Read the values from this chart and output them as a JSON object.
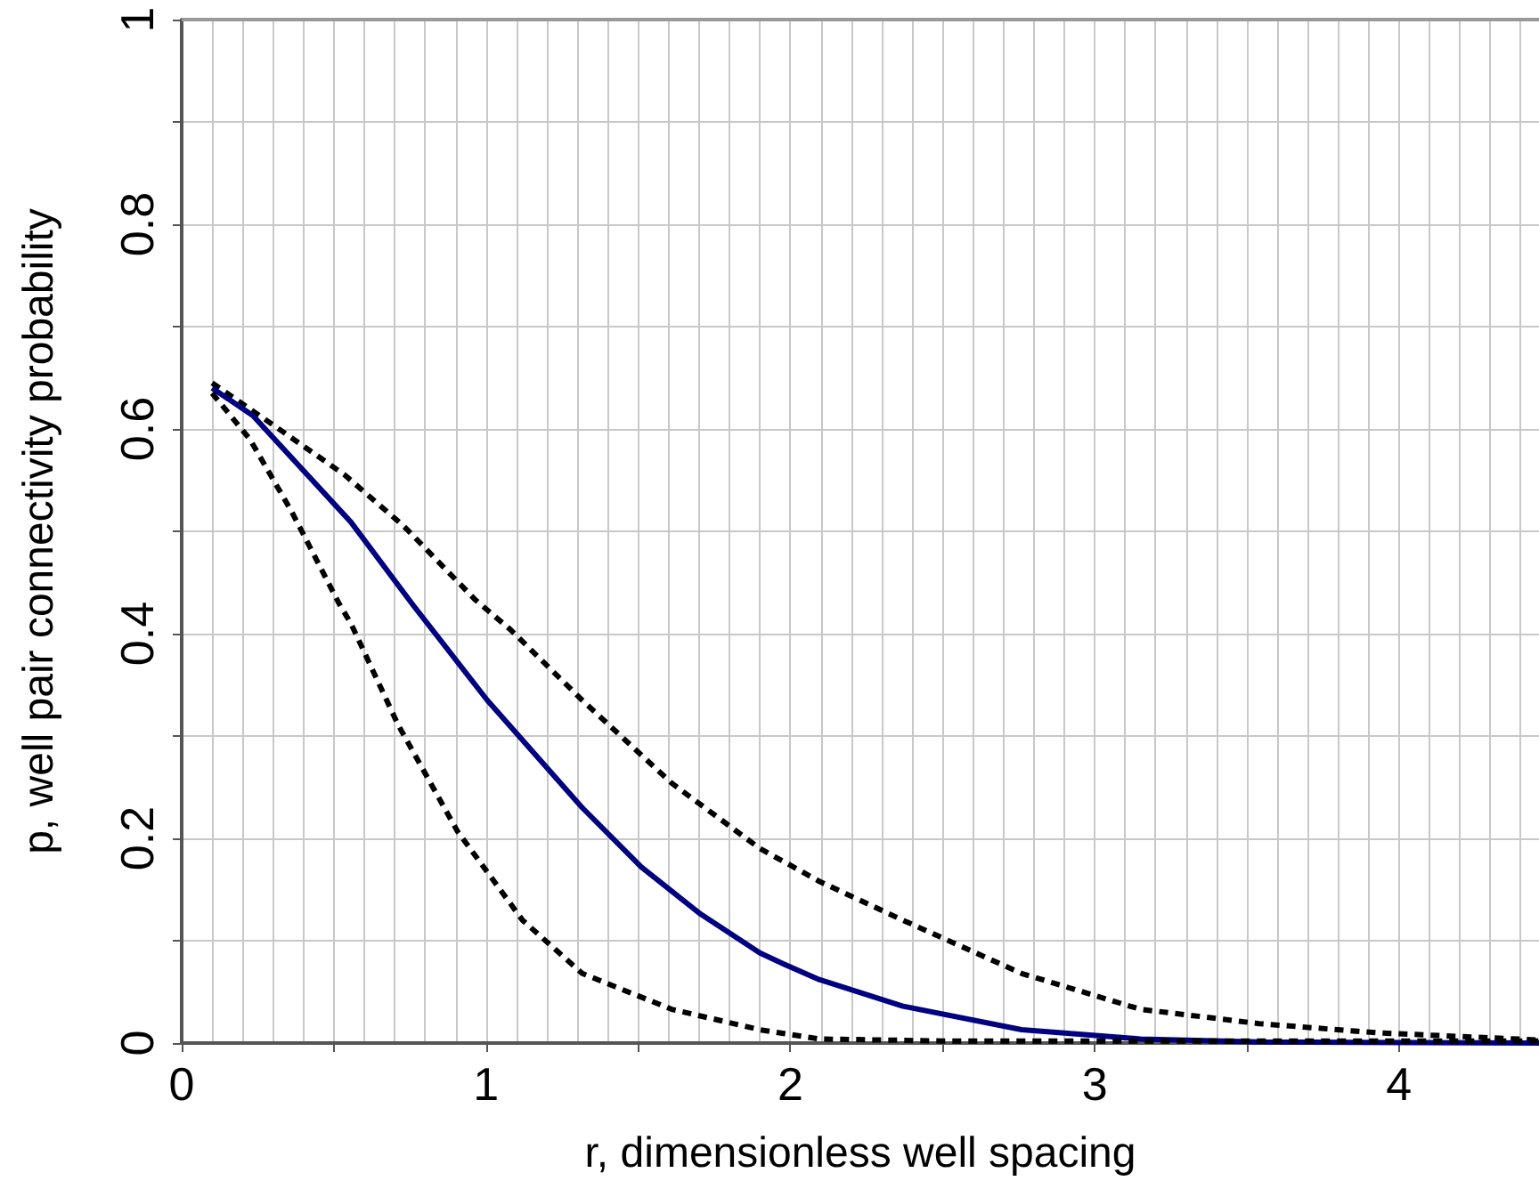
{
  "chart_data": {
    "type": "line",
    "xlabel": "r, dimensionless well spacing",
    "ylabel": "p, well pair connectivity probability",
    "xlim": [
      0,
      4.46
    ],
    "xticks": [
      0,
      {
        "value": 0.5,
        "label": null
      },
      1,
      {
        "value": 1.5,
        "label": null
      },
      2,
      {
        "value": 2.5,
        "label": null
      },
      3,
      {
        "value": 3.5,
        "label": null
      },
      4
    ],
    "ylim": [
      0,
      1
    ],
    "yticks": [
      0,
      {
        "value": 0.1,
        "label": null
      },
      0.2,
      {
        "value": 0.3,
        "label": null
      },
      0.4,
      {
        "value": 0.5,
        "label": null
      },
      0.6,
      {
        "value": 0.7,
        "label": null
      },
      0.8,
      {
        "value": 0.9,
        "label": null
      },
      1
    ],
    "grid": true,
    "marker": "none",
    "series": [
      {
        "color": "#000000",
        "line_style": "dashed",
        "x": [
          0.1,
          0.3,
          0.536,
          0.73,
          0.965,
          1.08,
          1.316,
          1.61,
          1.9,
          1.98,
          2.095,
          2.37,
          2.76,
          3.15,
          3.54,
          3.93,
          4.46
        ],
        "values": [
          0.645,
          0.604,
          0.555,
          0.505,
          0.433,
          0.404,
          0.335,
          0.254,
          0.19,
          0.177,
          0.158,
          0.12,
          0.068,
          0.033,
          0.019,
          0.01,
          0.003
        ]
      },
      {
        "color": "#000080",
        "line_style": "solid",
        "x": [
          0.1,
          0.234,
          0.556,
          0.76,
          1.004,
          1.316,
          1.51,
          1.705,
          1.9,
          1.98,
          2.095,
          2.37,
          2.76,
          3.15,
          3.54,
          4.46
        ],
        "values": [
          0.64,
          0.613,
          0.509,
          0.428,
          0.335,
          0.23,
          0.172,
          0.126,
          0.088,
          0.077,
          0.062,
          0.036,
          0.013,
          0.004,
          0.001,
          0
        ]
      },
      {
        "color": "#000000",
        "line_style": "dashed",
        "x": [
          0.1,
          0.224,
          0.36,
          0.4,
          0.516,
          0.556,
          0.711,
          0.906,
          1.12,
          1.316,
          1.61,
          1.9,
          2.095,
          2.5,
          4.46
        ],
        "values": [
          0.635,
          0.59,
          0.52,
          0.497,
          0.43,
          0.41,
          0.311,
          0.207,
          0.12,
          0.068,
          0.033,
          0.013,
          0.004,
          0.002,
          0.002
        ]
      }
    ]
  }
}
